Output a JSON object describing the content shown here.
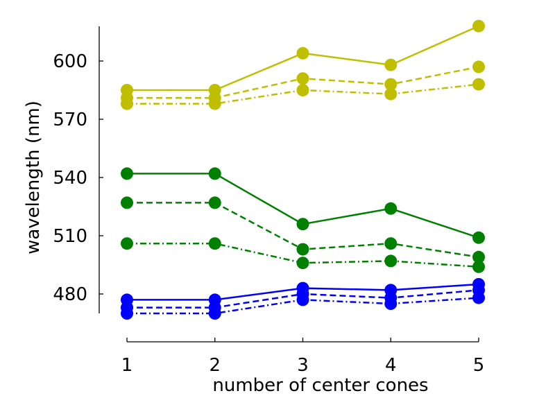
{
  "chart_data": {
    "type": "line",
    "title": "",
    "xlabel": "number of center cones",
    "ylabel": "wavelength (nm)",
    "x": [
      1,
      2,
      3,
      4,
      5
    ],
    "x_ticks": [
      "1",
      "2",
      "3",
      "4",
      "5"
    ],
    "y_ticks": [
      "480",
      "510",
      "540",
      "570",
      "600"
    ],
    "xlim": [
      1,
      5
    ],
    "ylim": [
      470,
      618
    ],
    "grid": false,
    "legend": "none",
    "series": [
      {
        "color": "#bfbf00",
        "dash": "solid",
        "values": [
          585,
          585,
          604,
          598,
          618
        ]
      },
      {
        "color": "#bfbf00",
        "dash": "dashed",
        "values": [
          581,
          581,
          591,
          588,
          597
        ]
      },
      {
        "color": "#bfbf00",
        "dash": "dashdot",
        "values": [
          578,
          578,
          585,
          583,
          588
        ]
      },
      {
        "color": "#008000",
        "dash": "solid",
        "values": [
          542,
          542,
          516,
          524,
          509
        ]
      },
      {
        "color": "#008000",
        "dash": "dashed",
        "values": [
          527,
          527,
          503,
          506,
          499
        ]
      },
      {
        "color": "#008000",
        "dash": "dashdot",
        "values": [
          506,
          506,
          496,
          497,
          494
        ]
      },
      {
        "color": "#0000ff",
        "dash": "solid",
        "values": [
          477,
          477,
          483,
          482,
          485
        ]
      },
      {
        "color": "#0000ff",
        "dash": "dashed",
        "values": [
          473,
          473,
          480,
          478,
          482
        ]
      },
      {
        "color": "#0000ff",
        "dash": "dashdot",
        "values": [
          470,
          470,
          477,
          475,
          478
        ]
      }
    ]
  }
}
